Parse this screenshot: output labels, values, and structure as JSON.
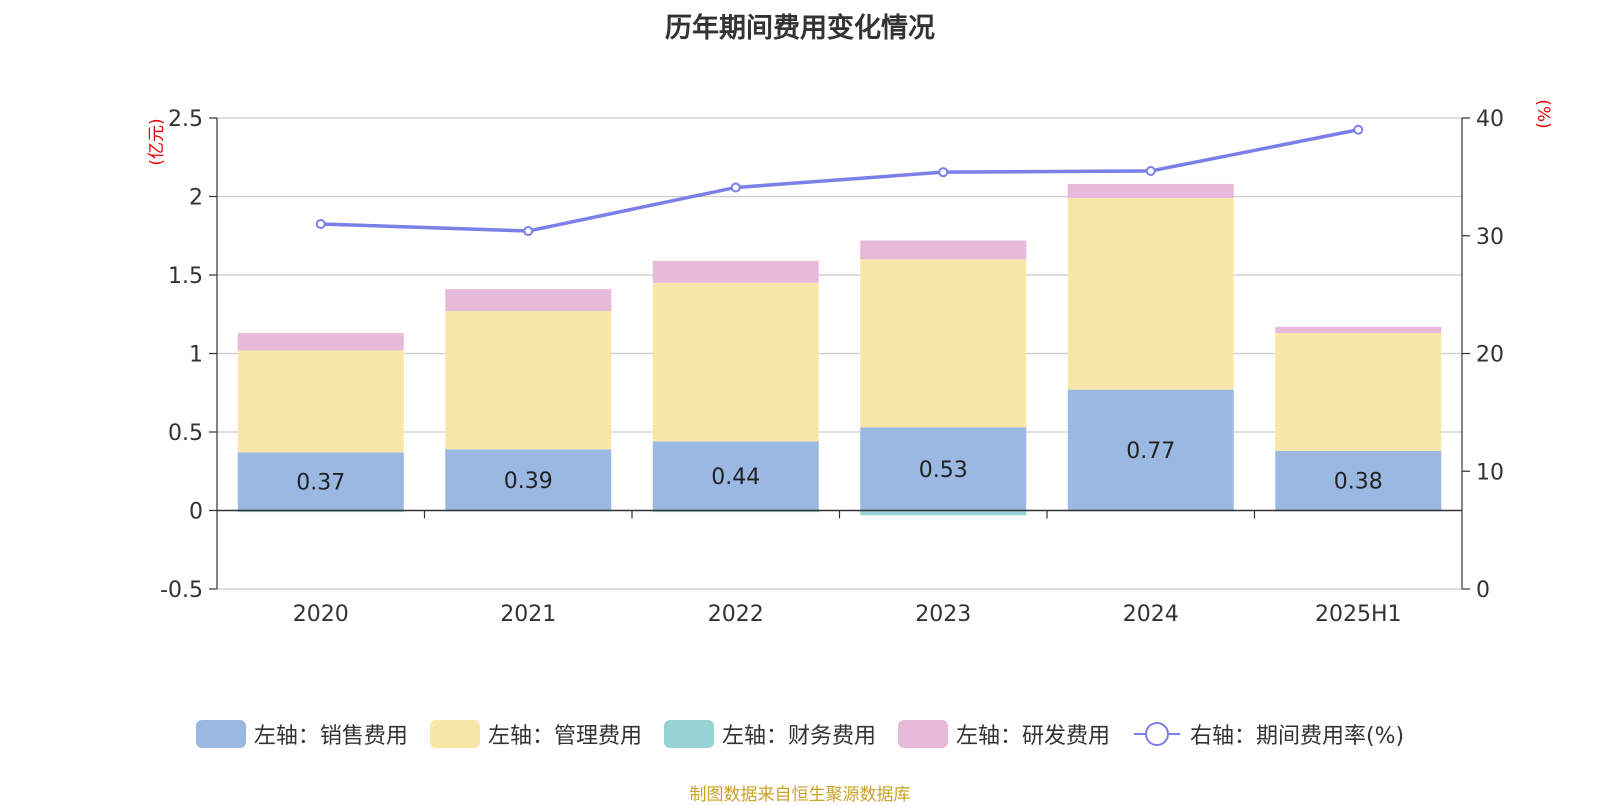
{
  "chart_data": {
    "type": "bar",
    "title": "历年期间费用变化情况",
    "categories": [
      "2020",
      "2021",
      "2022",
      "2023",
      "2024",
      "2025H1"
    ],
    "y_left": {
      "unit_label": "(亿元)",
      "ylim": [
        -0.5,
        2.5
      ],
      "ticks": [
        "-0.5",
        "0",
        "0.5",
        "1",
        "1.5",
        "2",
        "2.5"
      ]
    },
    "y_right": {
      "unit_label": "(%)",
      "ylim": [
        0,
        40
      ],
      "ticks": [
        "0",
        "10",
        "20",
        "30",
        "40"
      ]
    },
    "grid": true,
    "legend_position": "bottom",
    "series": [
      {
        "name": "左轴：销售费用",
        "kind": "bar",
        "color": "#9bb8e2",
        "values": [
          0.37,
          0.39,
          0.44,
          0.53,
          0.77,
          0.38
        ],
        "labels": [
          "0.37",
          "0.39",
          "0.44",
          "0.53",
          "0.77",
          "0.38"
        ]
      },
      {
        "name": "左轴：管理费用",
        "kind": "bar",
        "color": "#f8e7a7",
        "values": [
          0.65,
          0.88,
          1.01,
          1.07,
          1.22,
          0.75
        ]
      },
      {
        "name": "左轴：财务费用",
        "kind": "bar",
        "color": "#98d3d4",
        "values": [
          -0.01,
          -0.005,
          -0.01,
          -0.03,
          -0.005,
          -0.005
        ]
      },
      {
        "name": "左轴：研发费用",
        "kind": "bar",
        "color": "#e8bad9",
        "values": [
          0.11,
          0.14,
          0.14,
          0.12,
          0.09,
          0.04
        ]
      },
      {
        "name": "右轴：期间费用率(%)",
        "kind": "line",
        "color": "#7b7fe8",
        "values": [
          31.0,
          30.4,
          34.1,
          35.4,
          35.5,
          39.0
        ]
      }
    ]
  },
  "source_note": "制图数据来自恒生聚源数据库"
}
